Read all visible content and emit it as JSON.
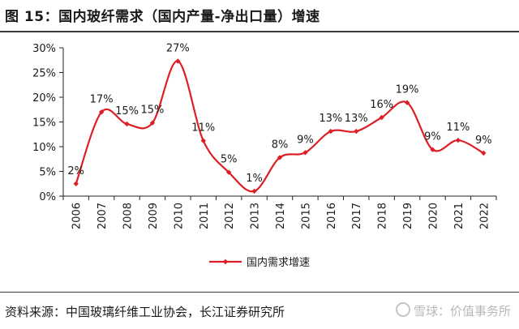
{
  "header": {
    "title": "图 15：国内玻纤需求（国内产量-净出口量）增速"
  },
  "footer": {
    "source": "资料来源：中国玻璃纤维工业协会，长江证券研究所",
    "watermark": "雪球：价值事务所"
  },
  "colors": {
    "series": "#dd1f25",
    "axis": "#222222"
  },
  "chart_data": {
    "type": "line",
    "title": "",
    "xlabel": "",
    "ylabel": "",
    "ylim": [
      0,
      30
    ],
    "yticks": [
      "0%",
      "5%",
      "10%",
      "15%",
      "20%",
      "25%",
      "30%"
    ],
    "categories": [
      "2006",
      "2007",
      "2008",
      "2009",
      "2010",
      "2011",
      "2012",
      "2013",
      "2014",
      "2015",
      "2016",
      "2017",
      "2018",
      "2019",
      "2020",
      "2021",
      "2022"
    ],
    "series": [
      {
        "name": "国内需求增速",
        "values": [
          2.5,
          17,
          14.6,
          14.8,
          27.3,
          11.2,
          4.8,
          1,
          7.8,
          8.8,
          13.1,
          13.1,
          15.9,
          18.9,
          9.4,
          11.3,
          8.7
        ]
      }
    ],
    "data_labels": [
      "2%",
      "17%",
      "15%",
      "15%",
      "27%",
      "11%",
      "5%",
      "1%",
      "8%",
      "9%",
      "13%",
      "13%",
      "16%",
      "19%",
      "9%",
      "11%",
      "9%"
    ],
    "legend": {
      "position": "bottom-center",
      "label": "国内需求增速"
    }
  }
}
